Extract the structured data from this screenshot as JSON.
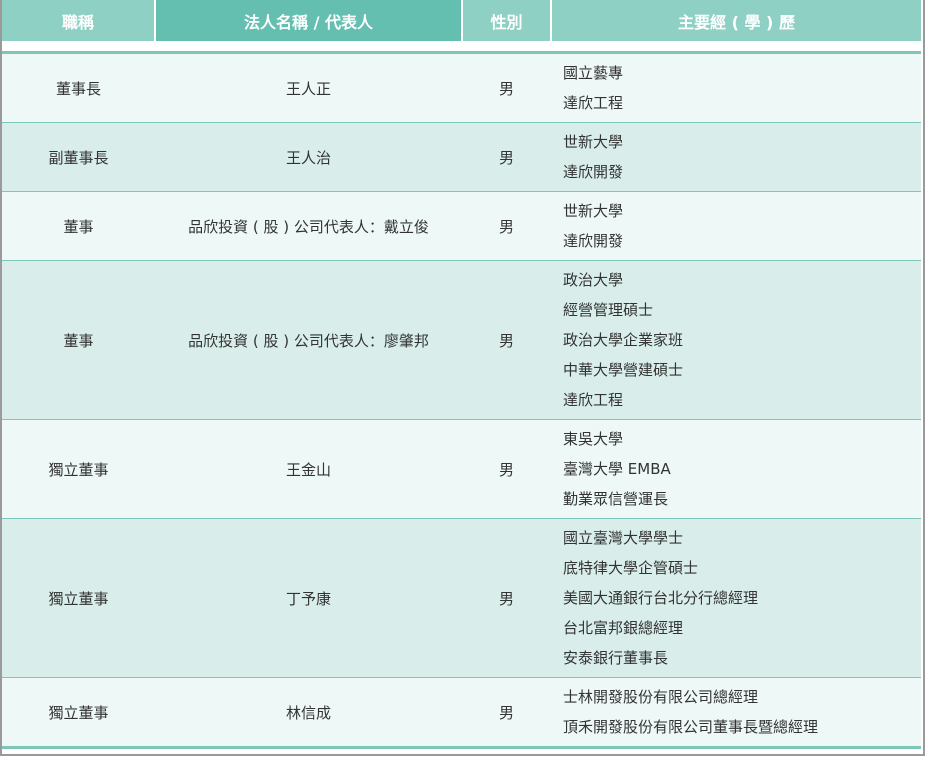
{
  "headers": [
    "職稱",
    "法人名稱 / 代表人",
    "性別",
    "主要經 ( 學 ) 歷"
  ],
  "colors": {
    "header_light": "#8fd0c5",
    "header_dark": "#65bfb1",
    "row_odd": "#eef8f7",
    "row_even": "#d9eeeb",
    "divider": "#7fc6ba"
  },
  "rows": [
    {
      "title": "董事長",
      "name": "王人正",
      "gender": "男",
      "experience": [
        "國立藝專",
        "達欣工程"
      ]
    },
    {
      "title": "副董事長",
      "name": "王人治",
      "gender": "男",
      "experience": [
        "世新大學",
        "達欣開發"
      ]
    },
    {
      "title": "董事",
      "name": "品欣投資 ( 股 ) 公司代表人：戴立俊",
      "gender": "男",
      "experience": [
        "世新大學",
        "達欣開發"
      ]
    },
    {
      "title": "董事",
      "name": "品欣投資 ( 股 ) 公司代表人：廖肇邦",
      "gender": "男",
      "experience": [
        "政治大學",
        "經營管理碩士",
        "政治大學企業家班",
        "中華大學營建碩士",
        "達欣工程"
      ]
    },
    {
      "title": "獨立董事",
      "name": "王金山",
      "gender": "男",
      "experience": [
        "東吳大學",
        "臺灣大學 EMBA",
        "勤業眾信營運長"
      ]
    },
    {
      "title": "獨立董事",
      "name": "丁予康",
      "gender": "男",
      "experience": [
        "國立臺灣大學學士",
        "底特律大學企管碩士",
        "美國大通銀行台北分行總經理",
        "台北富邦銀總經理",
        "安泰銀行董事長"
      ]
    },
    {
      "title": "獨立董事",
      "name": "林信成",
      "gender": "男",
      "experience": [
        "士林開發股份有限公司總經理",
        "頂禾開發股份有限公司董事長暨總經理"
      ]
    }
  ]
}
